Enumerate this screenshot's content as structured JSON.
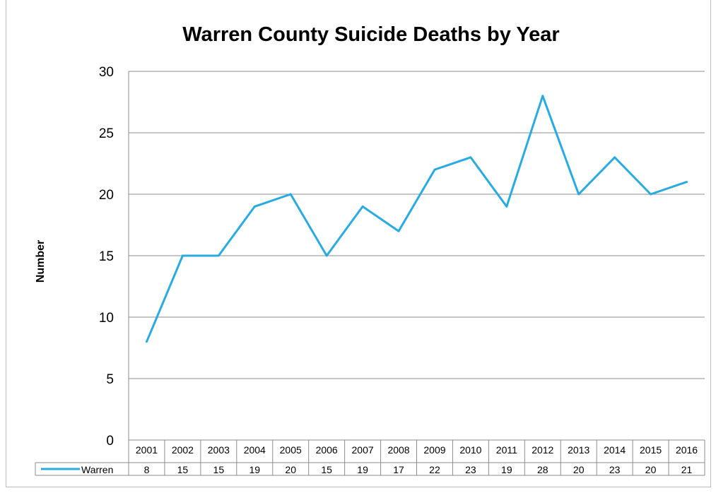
{
  "chart_data": {
    "type": "line",
    "title": "Warren County Suicide Deaths by Year",
    "ylabel": "Number",
    "xlabel": "",
    "ylim": [
      0,
      30
    ],
    "yticks": [
      0,
      5,
      10,
      15,
      20,
      25,
      30
    ],
    "grid": true,
    "legend": "data-table",
    "categories": [
      "2001",
      "2002",
      "2003",
      "2004",
      "2005",
      "2006",
      "2007",
      "2008",
      "2009",
      "2010",
      "2011",
      "2012",
      "2013",
      "2014",
      "2015",
      "2016"
    ],
    "series": [
      {
        "name": "Warren",
        "color": "#29abe2",
        "values": [
          8,
          15,
          15,
          19,
          20,
          15,
          19,
          17,
          22,
          23,
          19,
          28,
          20,
          23,
          20,
          21
        ]
      }
    ]
  }
}
